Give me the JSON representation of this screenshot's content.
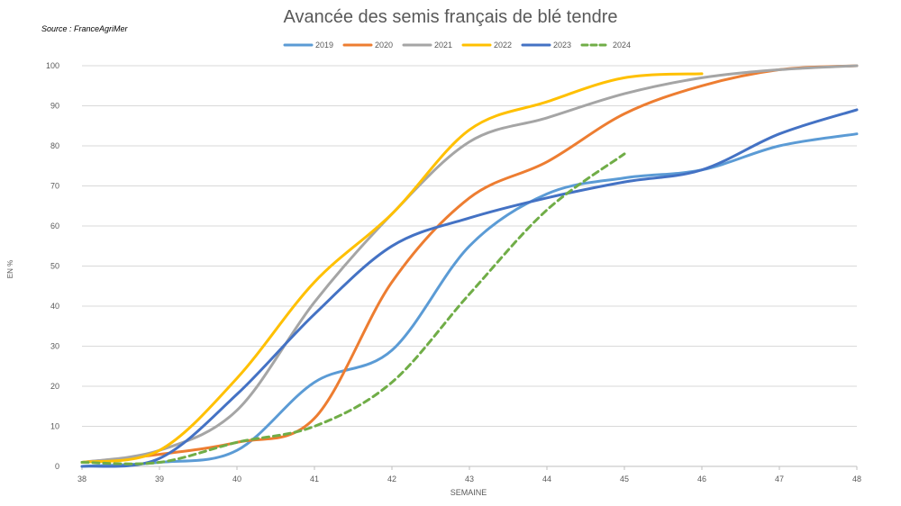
{
  "chart_data": {
    "type": "line",
    "title": "Avancée des semis français de blé tendre",
    "source": "Source : FranceAgriMer",
    "xlabel": "SEMAINE",
    "ylabel": "EN %",
    "x": [
      38,
      39,
      40,
      41,
      42,
      43,
      44,
      45,
      46,
      47,
      48
    ],
    "xlim": [
      38,
      48
    ],
    "ylim": [
      0,
      100
    ],
    "y_ticks": [
      0,
      10,
      20,
      30,
      40,
      50,
      60,
      70,
      80,
      90,
      100
    ],
    "grid": true,
    "legend_position": "top",
    "series": [
      {
        "name": "2019",
        "color": "#5B9BD5",
        "dashed": false,
        "values": [
          0,
          1,
          4,
          21,
          29,
          55,
          68,
          72,
          74,
          80,
          83
        ]
      },
      {
        "name": "2020",
        "color": "#ED7D31",
        "dashed": false,
        "values": [
          1,
          3,
          6,
          12,
          46,
          67,
          76,
          88,
          95,
          99,
          100
        ]
      },
      {
        "name": "2021",
        "color": "#A5A5A5",
        "dashed": false,
        "values": [
          1,
          4,
          14,
          41,
          63,
          81,
          87,
          93,
          97,
          99,
          100
        ]
      },
      {
        "name": "2022",
        "color": "#FFC000",
        "dashed": false,
        "values": [
          1,
          4,
          22,
          46,
          63,
          84,
          91,
          97,
          98,
          null,
          null
        ]
      },
      {
        "name": "2023",
        "color": "#4472C4",
        "dashed": false,
        "values": [
          0,
          2,
          18,
          38,
          55,
          62,
          67,
          71,
          74,
          83,
          89
        ]
      },
      {
        "name": "2024",
        "color": "#70AD47",
        "dashed": true,
        "values": [
          1,
          1,
          6,
          10,
          21,
          43,
          64,
          78,
          null,
          null,
          null
        ]
      }
    ]
  }
}
